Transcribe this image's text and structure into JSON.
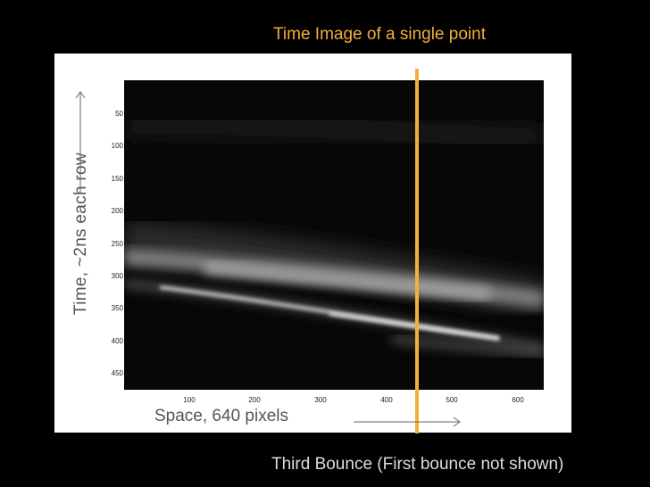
{
  "slide": {
    "title": "Time Image of a single point",
    "caption": "Third Bounce (First bounce not shown)"
  },
  "figure": {
    "y_axis_label": "Time, ~2ns each row",
    "x_axis_label": "Space, 640 pixels",
    "y_ticks": [
      "50",
      "100",
      "150",
      "200",
      "250",
      "300",
      "350",
      "400",
      "450"
    ],
    "x_ticks": [
      "100",
      "200",
      "300",
      "400",
      "500",
      "600"
    ],
    "marker_color": "#f2b03a"
  }
}
